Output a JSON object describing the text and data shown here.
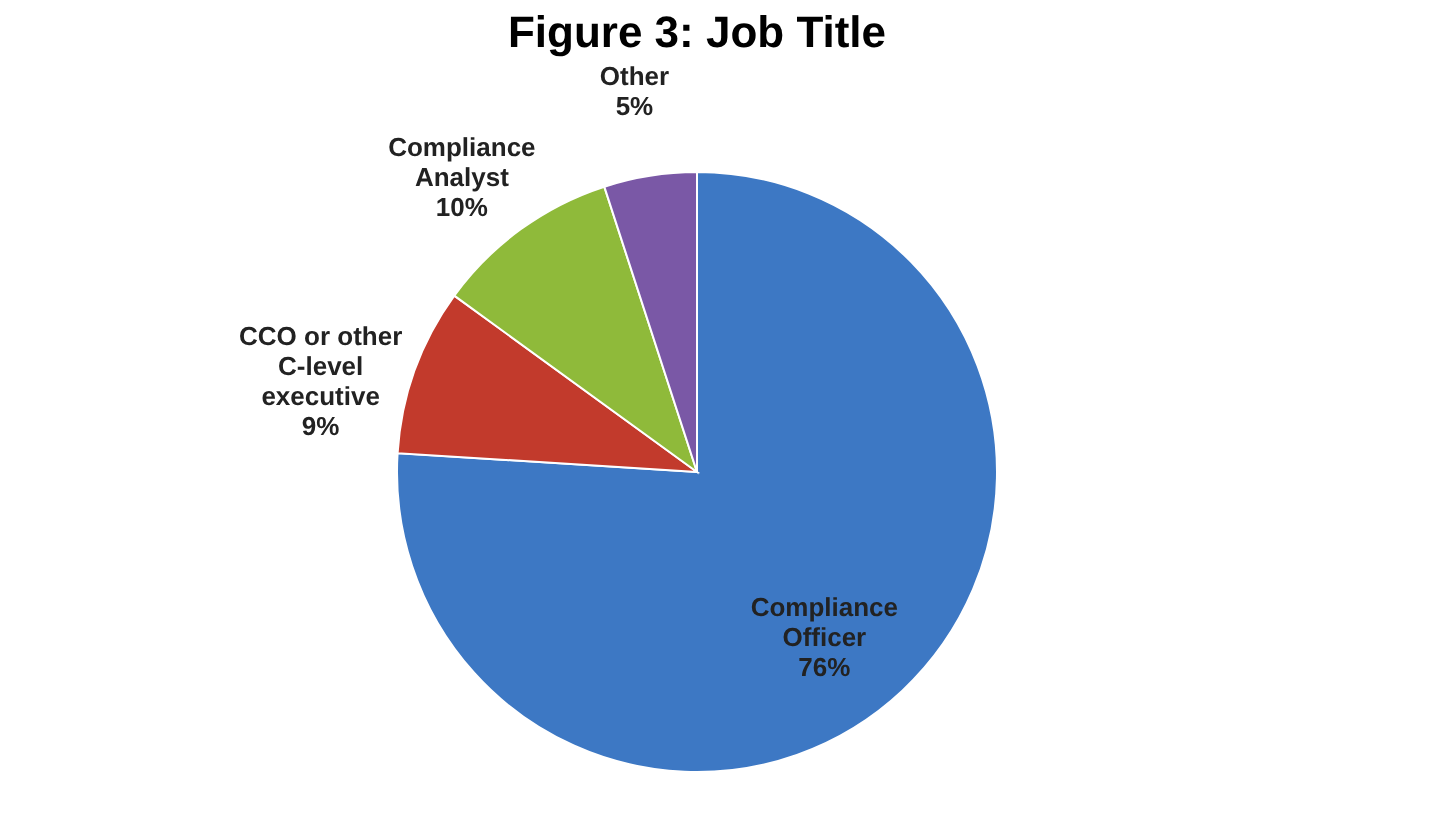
{
  "chart_data": {
    "type": "pie",
    "title": "Figure 3: Job Title",
    "categories": [
      "Compliance Officer",
      "CCO or other C-level executive",
      "Compliance Analyst",
      "Other"
    ],
    "values": [
      76,
      9,
      10,
      5
    ],
    "colors": [
      "#3d78c4",
      "#c23a2c",
      "#8fba3a",
      "#7a58a6"
    ],
    "value_labels": [
      "76%",
      "9%",
      "10%",
      "5%"
    ],
    "legend": false
  }
}
